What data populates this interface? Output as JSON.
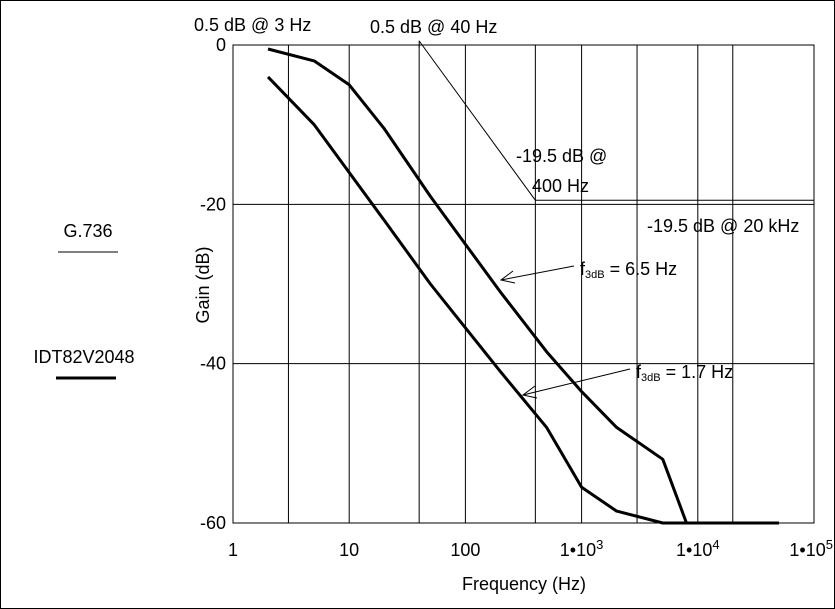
{
  "chart_data": {
    "type": "line",
    "title": "",
    "xlabel": "Frequency (Hz)",
    "ylabel": "Gain (dB)",
    "x_scale": "log",
    "xlim": [
      1,
      100000
    ],
    "ylim": [
      -60,
      0
    ],
    "grid": true,
    "x_ticks": [
      {
        "value": 1,
        "label": "1"
      },
      {
        "value": 10,
        "label": "10"
      },
      {
        "value": 100,
        "label": "100"
      },
      {
        "value": 1000,
        "base": "1•10",
        "exp": "3"
      },
      {
        "value": 10000,
        "base": "1•10",
        "exp": "4"
      },
      {
        "value": 100000,
        "base": "1•10",
        "exp": "5"
      }
    ],
    "y_ticks": [
      {
        "value": 0,
        "label": "0"
      },
      {
        "value": -20,
        "label": "-20"
      },
      {
        "value": -40,
        "label": "-40"
      },
      {
        "value": -60,
        "label": "-60"
      }
    ],
    "legend": [
      {
        "label": "G.736",
        "style": "thin"
      },
      {
        "label": "IDT82V2048",
        "style": "thick"
      }
    ],
    "series": [
      {
        "name": "G.736",
        "style": "thin",
        "points": [
          [
            40,
            -0.3
          ],
          [
            40,
            0.5
          ],
          [
            400,
            -19.5
          ],
          [
            100000,
            -19.5
          ]
        ]
      },
      {
        "name": "IDT82V2048",
        "style": "thick",
        "points": [
          [
            2,
            -0.5
          ],
          [
            5,
            -2
          ],
          [
            10,
            -5
          ],
          [
            20,
            -10.5
          ],
          [
            50,
            -19
          ],
          [
            100,
            -25
          ],
          [
            200,
            -31
          ],
          [
            500,
            -38.5
          ],
          [
            1000,
            -43.5
          ],
          [
            2000,
            -48
          ],
          [
            5000,
            -52
          ],
          [
            8000,
            -60
          ],
          [
            50000,
            -60
          ]
        ]
      },
      {
        "name": "IDT82V2048",
        "style": "thick",
        "points": [
          [
            2,
            -4
          ],
          [
            5,
            -10
          ],
          [
            10,
            -16
          ],
          [
            20,
            -22
          ],
          [
            50,
            -30
          ],
          [
            100,
            -35.5
          ],
          [
            200,
            -41
          ],
          [
            500,
            -48
          ],
          [
            1000,
            -55.5
          ],
          [
            2000,
            -58.5
          ],
          [
            5000,
            -60
          ],
          [
            50000,
            -60
          ]
        ]
      }
    ],
    "annotations": [
      {
        "text": "0.5 dB @ 3 Hz"
      },
      {
        "text": "0.5 dB @ 40 Hz"
      },
      {
        "text": "-19.5 dB @"
      },
      {
        "text": "400 Hz"
      },
      {
        "text": "-19.5 dB @ 20 kHz"
      }
    ],
    "callouts": [
      {
        "prefix": "f",
        "sub": "3dB",
        "suffix": " = 6.5 Hz"
      },
      {
        "prefix": "f",
        "sub": "3dB",
        "suffix": " = 1.7 Hz"
      }
    ]
  }
}
